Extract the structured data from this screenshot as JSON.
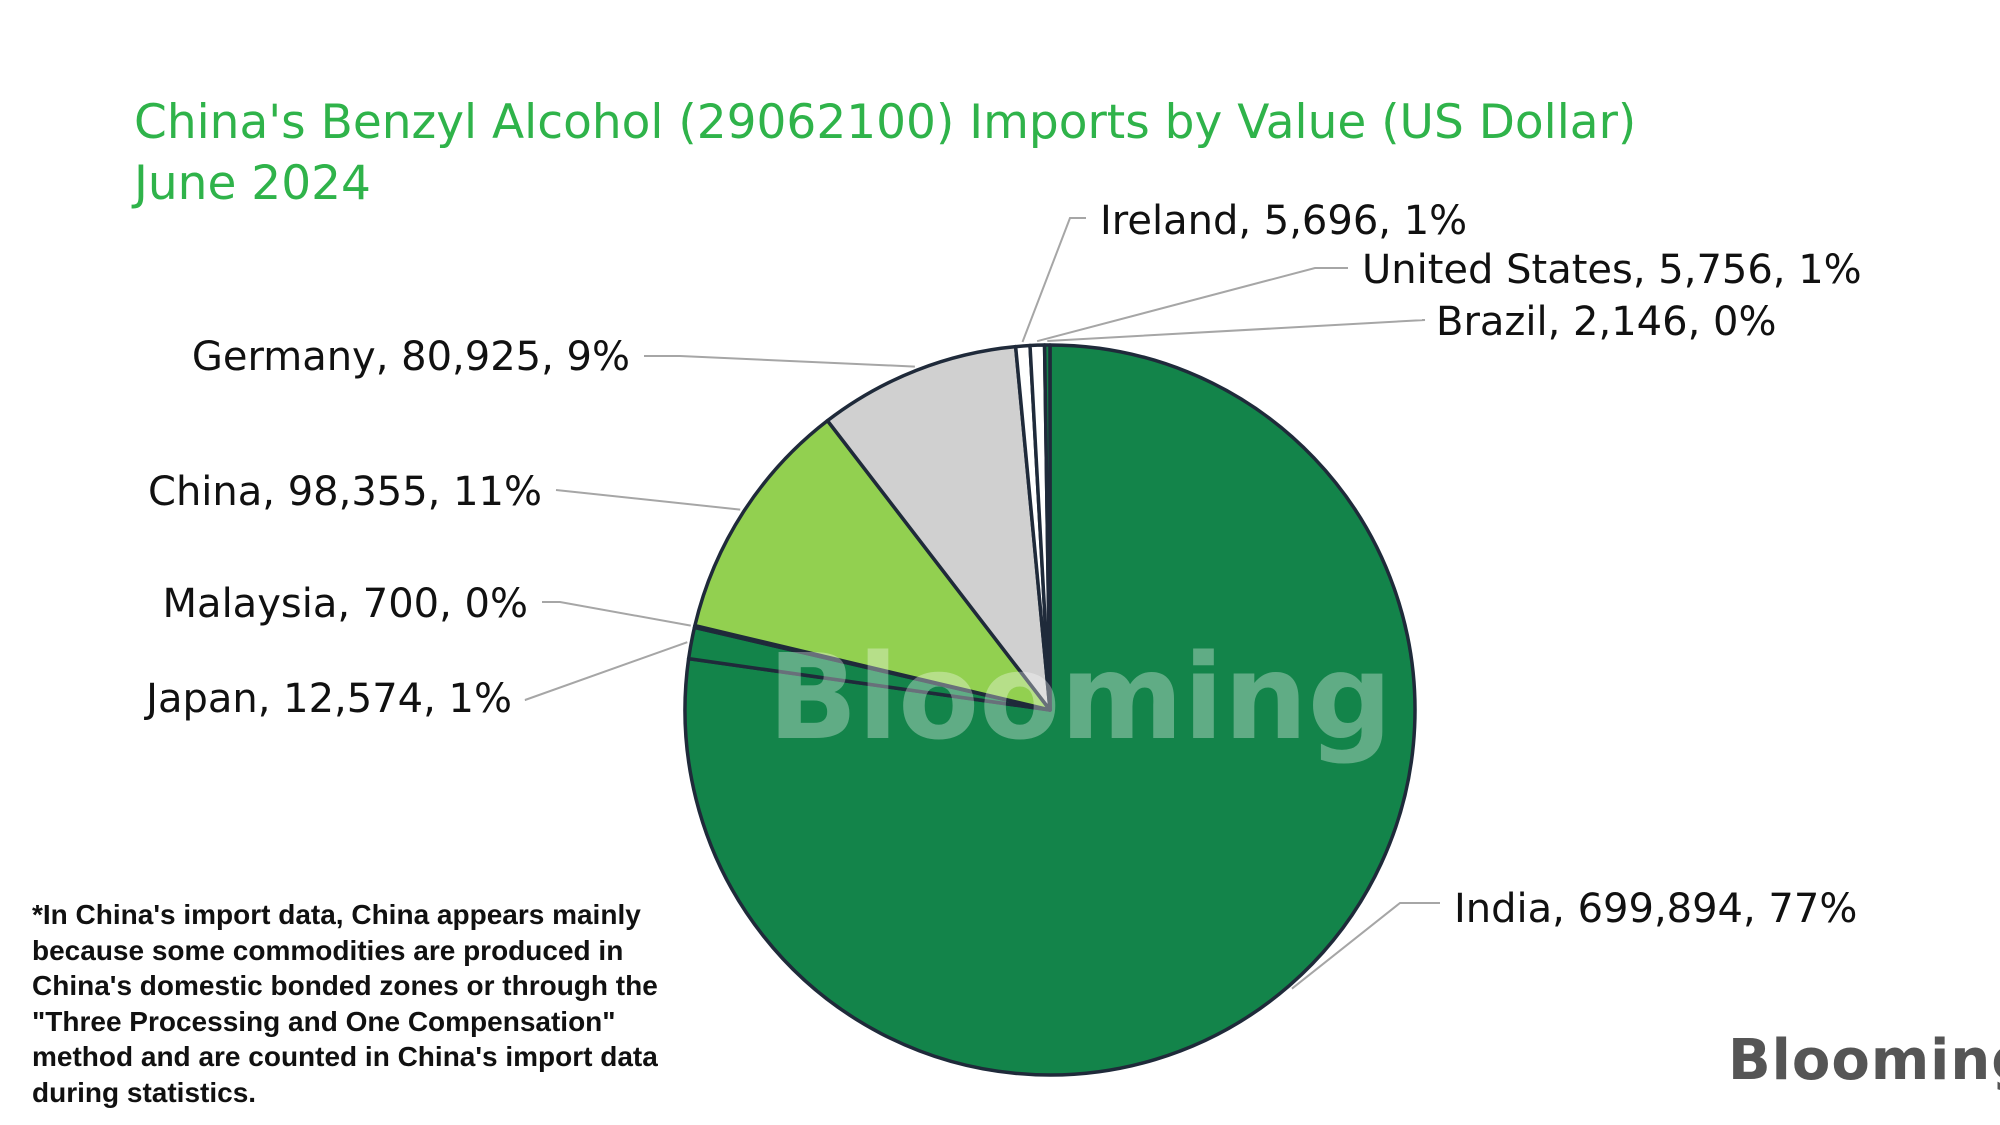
{
  "title": {
    "line1": "China's Benzyl Alcohol (29062100) Imports by Value (US Dollar)",
    "line2": "June 2024"
  },
  "footnote": "*In China's import data, China appears mainly because some commodities are produced in China's domestic bonded zones or through the \"Three Processing and One Compensation\" method and are counted in China's import data during statistics.",
  "watermark": "Blooming",
  "brand": "Blooming",
  "colors": {
    "title": "#2fb34a",
    "india": "#13844a",
    "japan": "#13844a",
    "malaysia": "#13844a",
    "china": "#92d050",
    "germany": "#d0d0d0",
    "ireland": "#ffffff",
    "united_states": "#ffffff",
    "brazil": "#13844a",
    "outline": "#1f2a3a"
  },
  "chart_data": {
    "type": "pie",
    "title": "China's Benzyl Alcohol (29062100) Imports by Value (US Dollar) June 2024",
    "series": [
      {
        "values": [
          {
            "label": "India",
            "value": 699894,
            "percent": "77%",
            "color": "#13844a"
          },
          {
            "label": "Japan",
            "value": 12574,
            "percent": "1%",
            "color": "#13844a"
          },
          {
            "label": "Malaysia",
            "value": 700,
            "percent": "0%",
            "color": "#13844a"
          },
          {
            "label": "China",
            "value": 98355,
            "percent": "11%",
            "color": "#92d050"
          },
          {
            "label": "Germany",
            "value": 80925,
            "percent": "9%",
            "color": "#d0d0d0"
          },
          {
            "label": "Ireland",
            "value": 5696,
            "percent": "1%",
            "color": "#ffffff"
          },
          {
            "label": "United States",
            "value": 5756,
            "percent": "1%",
            "color": "#ffffff"
          },
          {
            "label": "Brazil",
            "value": 2146,
            "percent": "0%",
            "color": "#13844a"
          }
        ]
      }
    ],
    "data_labels": [
      "India, 699,894, 77%",
      "Japan, 12,574, 1%",
      "Malaysia, 700, 0%",
      "China, 98,355, 11%",
      "Germany, 80,925, 9%",
      "Ireland, 5,696, 1%",
      "United States, 5,756, 1%",
      "Brazil, 2,146, 0%"
    ],
    "legend": "none",
    "start": "12 o'clock, clockwise"
  }
}
